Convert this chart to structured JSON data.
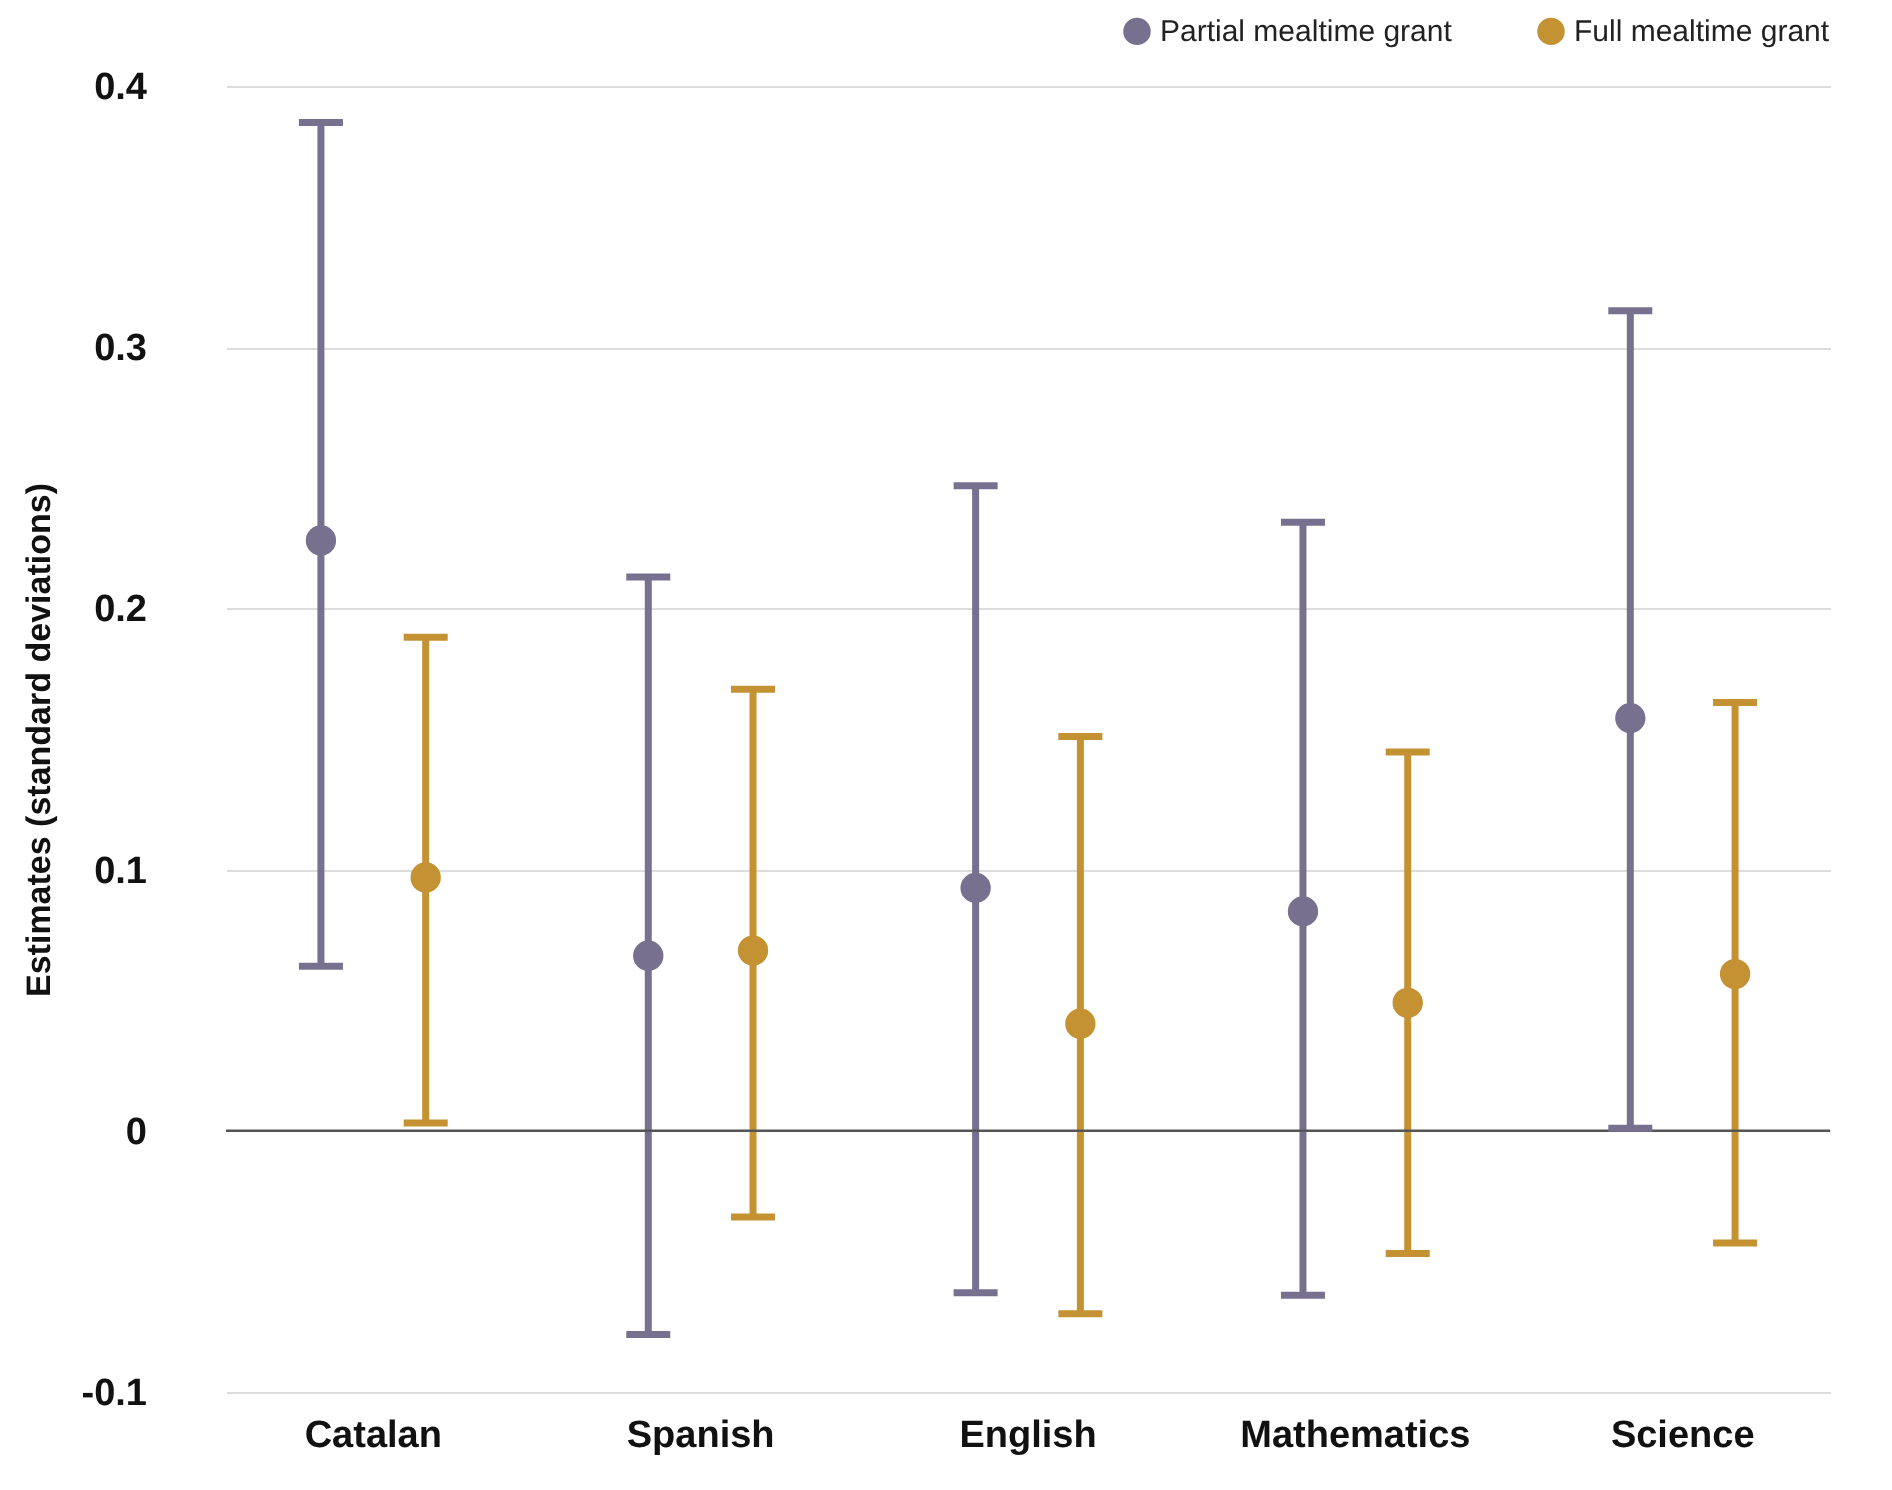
{
  "chart_data": {
    "type": "scatter",
    "ylabel": "Estimates (standard deviations)",
    "categories": [
      "Catalan",
      "Spanish",
      "English",
      "Mathematics",
      "Science"
    ],
    "series": [
      {
        "name": "Partial mealtime grant",
        "color": "#77718f",
        "values": [
          0.226,
          0.067,
          0.093,
          0.084,
          0.158
        ],
        "errors": [
          [
            0.063,
            0.386
          ],
          [
            -0.078,
            0.212
          ],
          [
            -0.062,
            0.247
          ],
          [
            -0.063,
            0.233
          ],
          [
            0.001,
            0.314
          ]
        ]
      },
      {
        "name": "Full mealtime grant",
        "color": "#c49233",
        "values": [
          0.097,
          0.069,
          0.041,
          0.049,
          0.06
        ],
        "errors": [
          [
            0.003,
            0.189
          ],
          [
            -0.033,
            0.169
          ],
          [
            -0.07,
            0.151
          ],
          [
            -0.047,
            0.145
          ],
          [
            -0.043,
            0.164
          ]
        ]
      }
    ],
    "ylim": [
      -0.1,
      0.4
    ],
    "yticks": [
      {
        "value": -0.1,
        "label": "-0.1"
      },
      0,
      0.1,
      0.2,
      0.3,
      0.4
    ],
    "ref_lines": [
      {
        "axis": "y",
        "value": 0,
        "color": "#555555"
      }
    ],
    "grid": "y",
    "legend": "top right",
    "marker": "circle"
  }
}
